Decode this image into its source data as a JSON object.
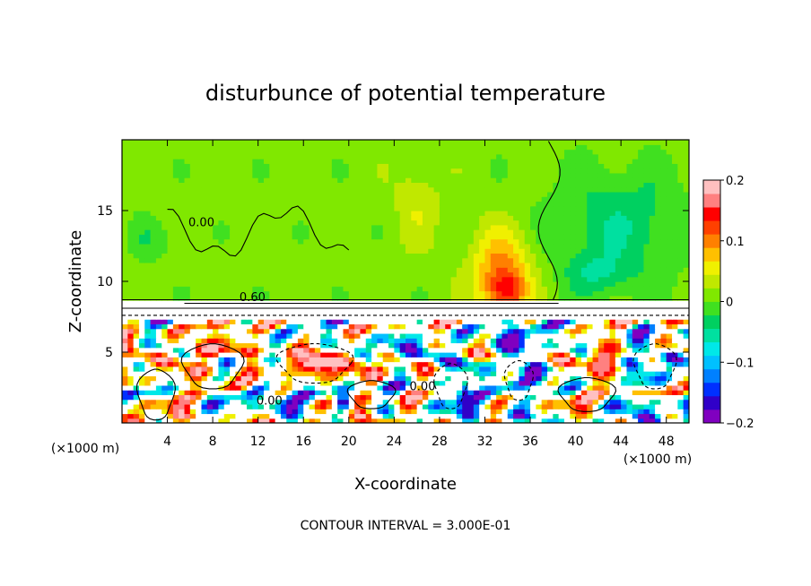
{
  "chart_data": {
    "type": "heatmap",
    "title": "disturbunce of potential temperature",
    "xlabel": "X-coordinate",
    "ylabel": "Z-coordinate",
    "x_unit_left": "(×1000 m)",
    "x_unit_right": "(×1000 m)",
    "footer": "CONTOUR INTERVAL = 3.000E-01",
    "xlim": [
      0,
      50
    ],
    "ylim": [
      0,
      20
    ],
    "xticks": [
      4,
      8,
      12,
      16,
      20,
      24,
      28,
      32,
      36,
      40,
      44,
      48
    ],
    "xtick_labels": [
      "4",
      "8",
      "12",
      "16",
      "20",
      "24",
      "28",
      "32",
      "36",
      "40",
      "44",
      "48"
    ],
    "yticks": [
      5,
      10,
      15
    ],
    "ytick_labels": [
      "5",
      "10",
      "15"
    ],
    "colorbar": {
      "min": -0.2,
      "max": 0.2,
      "ticks": [
        0.2,
        0.1,
        0,
        -0.1,
        -0.2
      ],
      "tick_labels": [
        "0.2",
        "0.1",
        "0",
        "−0.1",
        "−0.2"
      ],
      "colors": [
        "#8000c0",
        "#3000c8",
        "#0030ff",
        "#0080ff",
        "#00c0ff",
        "#00e8e8",
        "#00e0a0",
        "#00d060",
        "#40e020",
        "#80e800",
        "#c0e800",
        "#f0f000",
        "#ffc000",
        "#ff8000",
        "#ff4000",
        "#ff0000",
        "#ff8080",
        "#ffc0c0"
      ]
    },
    "contour_labels": [
      {
        "text": "0.00",
        "x": 13.0,
        "z": 1.3
      },
      {
        "text": "0.00",
        "x": 26.5,
        "z": 2.3
      },
      {
        "text": "0.00",
        "x": 7.0,
        "z": 13.9
      },
      {
        "text": "0.60",
        "x": 11.5,
        "z": 8.6
      }
    ],
    "background_value": 0.01,
    "features": [
      {
        "name": "warm plume",
        "x": 33.5,
        "z": 10.5,
        "sx": 2.5,
        "sz": 3.0,
        "v": 0.1
      },
      {
        "name": "warm core",
        "x": 34.0,
        "z": 9.3,
        "sx": 1.5,
        "sz": 1.2,
        "v": 0.07
      },
      {
        "name": "cool upper right",
        "x": 44.0,
        "z": 14.0,
        "sx": 6.0,
        "sz": 4.0,
        "v": -0.05
      },
      {
        "name": "cool right mid",
        "x": 42.0,
        "z": 10.5,
        "sx": 3.0,
        "sz": 1.5,
        "v": -0.04
      },
      {
        "name": "cool upper left",
        "x": 2.5,
        "z": 13.0,
        "sx": 2.0,
        "sz": 1.5,
        "v": -0.025
      },
      {
        "name": "warm streak",
        "x": 26.0,
        "z": 15.5,
        "sx": 2.0,
        "sz": 3.0,
        "v": 0.03
      },
      {
        "name": "cold pool",
        "x": 34.5,
        "z": 5.5,
        "sx": 1.0,
        "sz": 1.0,
        "v": -0.2
      },
      {
        "name": "cold pool 2",
        "x": 19.5,
        "z": 1.5,
        "sx": 0.7,
        "sz": 0.8,
        "v": -0.2
      },
      {
        "name": "cold pool 3",
        "x": 30.2,
        "z": 2.0,
        "sx": 0.6,
        "sz": 1.0,
        "v": -0.18
      },
      {
        "name": "warm lens",
        "x": 17.0,
        "z": 4.2,
        "sx": 3.0,
        "sz": 1.0,
        "v": 0.2
      },
      {
        "name": "warm lens 2",
        "x": 7.5,
        "z": 5.2,
        "sx": 1.6,
        "sz": 0.8,
        "v": 0.2
      },
      {
        "name": "warm lens 3",
        "x": 42.5,
        "z": 4.5,
        "sx": 1.5,
        "sz": 1.5,
        "v": 0.18
      }
    ]
  }
}
